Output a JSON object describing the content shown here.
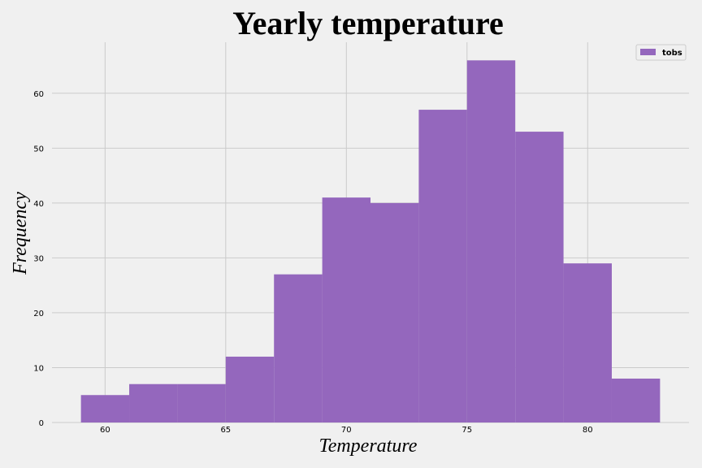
{
  "chart_data": {
    "type": "bar",
    "title": "Yearly temperature",
    "xlabel": "Temperature",
    "ylabel": "Frequency",
    "bins": [
      {
        "x0": 59,
        "x1": 61,
        "count": 5
      },
      {
        "x0": 61,
        "x1": 63,
        "count": 7
      },
      {
        "x0": 63,
        "x1": 65,
        "count": 7
      },
      {
        "x0": 65,
        "x1": 67,
        "count": 12
      },
      {
        "x0": 67,
        "x1": 69,
        "count": 27
      },
      {
        "x0": 69,
        "x1": 71,
        "count": 41
      },
      {
        "x0": 71,
        "x1": 73,
        "count": 40
      },
      {
        "x0": 73,
        "x1": 75,
        "count": 57
      },
      {
        "x0": 75,
        "x1": 77,
        "count": 66
      },
      {
        "x0": 77,
        "x1": 79,
        "count": 53
      },
      {
        "x0": 79,
        "x1": 81,
        "count": 29
      },
      {
        "x0": 81,
        "x1": 83,
        "count": 8
      }
    ],
    "xlim": [
      57.8,
      84.2
    ],
    "ylim": [
      0,
      69.3
    ],
    "xticks": [
      60,
      65,
      70,
      75,
      80
    ],
    "yticks": [
      0,
      10,
      20,
      30,
      40,
      50,
      60
    ],
    "grid": true,
    "legend": {
      "position": "top-right",
      "entries": [
        "tobs"
      ]
    },
    "bar_color": "#9467bd",
    "background_color": "#f0f0f0",
    "grid_color": "#cbcbcb"
  }
}
